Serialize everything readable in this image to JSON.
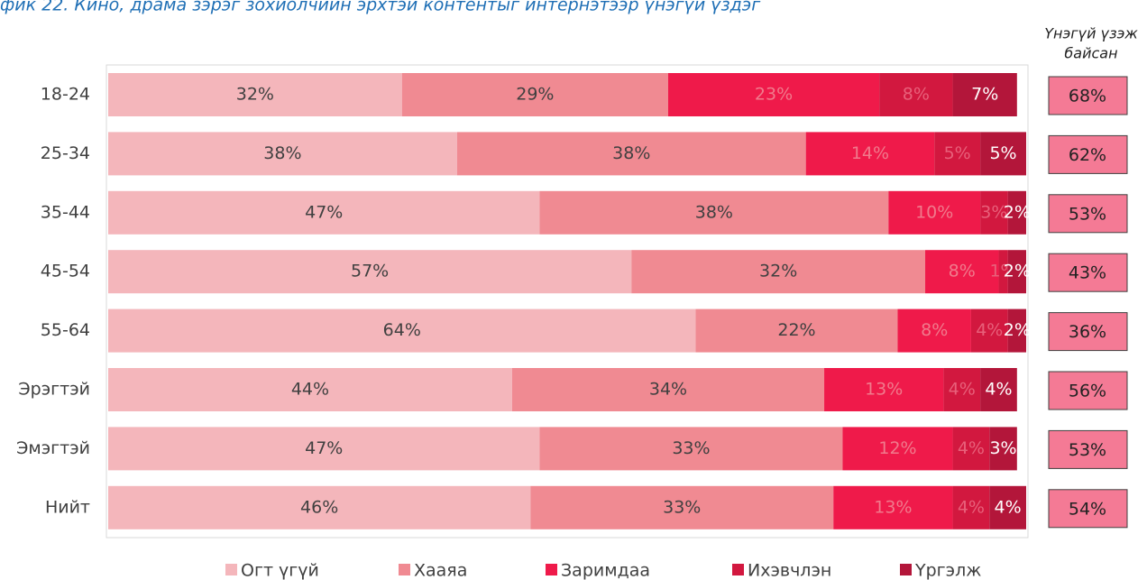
{
  "chart_data": {
    "type": "stacked_barh",
    "title": "фик 22. Кино, драма зэрэг зохиолчийн эрхтэй контентыг интернэтээр үнэгүй үздэг",
    "categories": [
      "18-24",
      "25-34",
      "35-44",
      "45-54",
      "55-64",
      "Эрэгтэй",
      "Эмэгтэй",
      "Нийт"
    ],
    "xlim": [
      0,
      100
    ],
    "series": [
      {
        "name": "Огт үгүй",
        "color": "#f4b6bb",
        "values": [
          32,
          38,
          47,
          57,
          64,
          44,
          47,
          46
        ],
        "value_labels": [
          "32%",
          "38%",
          "47%",
          "57%",
          "64%",
          "44%",
          "47%",
          "46%"
        ]
      },
      {
        "name": "Хааяа",
        "color": "#f08a92",
        "values": [
          29,
          38,
          38,
          32,
          22,
          34,
          33,
          33
        ],
        "value_labels": [
          "29%",
          "38%",
          "38%",
          "32%",
          "22%",
          "34%",
          "33%",
          "33%"
        ]
      },
      {
        "name": "Заримдаа",
        "color": "#ef1a4a",
        "values": [
          23,
          14,
          10,
          8,
          8,
          13,
          12,
          13
        ],
        "value_labels": [
          "23%",
          "14%",
          "10%",
          "8%",
          "8%",
          "13%",
          "12%",
          "13%"
        ]
      },
      {
        "name": "Ихэвчлэн",
        "color": "#d2183f",
        "values": [
          8,
          5,
          3,
          1,
          4,
          4,
          4,
          4
        ],
        "value_labels": [
          "8%",
          "5%",
          "3%",
          "1%",
          "4%",
          "4%",
          "4%",
          "4%"
        ]
      },
      {
        "name": "Үргэлж",
        "color": "#b3163a",
        "values": [
          7,
          5,
          2,
          2,
          2,
          4,
          3,
          4
        ],
        "value_labels": [
          "7%",
          "5%",
          "2%",
          "2%",
          "2%",
          "4%",
          "3%",
          "4%"
        ]
      }
    ],
    "side_title": [
      "Үнэгүй үзэж",
      "байсан"
    ],
    "side_color": "#f47a95",
    "side_values": [
      68,
      62,
      53,
      43,
      36,
      56,
      53,
      54
    ],
    "side_value_labels": [
      "68%",
      "62%",
      "53%",
      "43%",
      "36%",
      "56%",
      "53%",
      "54%"
    ],
    "legend": "bottom"
  }
}
